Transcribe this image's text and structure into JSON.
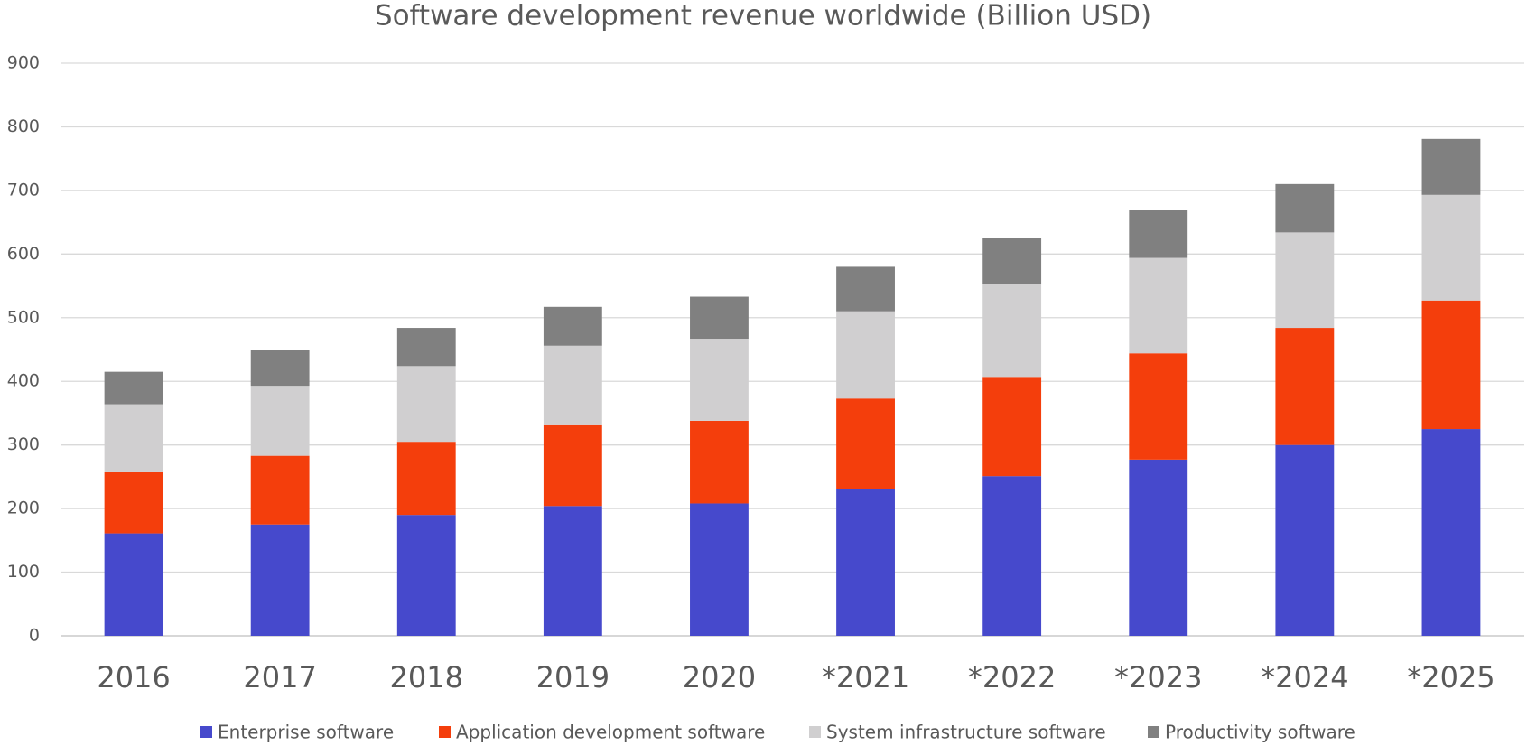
{
  "chart_data": {
    "type": "stacked_bar",
    "title": "Software development revenue worldwide (Billion USD)",
    "categories": [
      "2016",
      "2017",
      "2018",
      "2019",
      "2020",
      "*2021",
      "*2022",
      "*2023",
      "*2024",
      "*2025"
    ],
    "series": [
      {
        "name": "Enterprise software",
        "color": "#4649cc",
        "values": [
          161,
          175,
          190,
          204,
          208,
          231,
          251,
          277,
          300,
          325
        ]
      },
      {
        "name": "Application development software",
        "color": "#f43e0c",
        "values": [
          96,
          108,
          115,
          127,
          130,
          142,
          156,
          167,
          184,
          202
        ]
      },
      {
        "name": "System infrastructure software",
        "color": "#d0cfd0",
        "values": [
          107,
          110,
          119,
          125,
          129,
          137,
          146,
          150,
          150,
          166
        ]
      },
      {
        "name": "Productivity software",
        "color": "#808080",
        "values": [
          51,
          57,
          60,
          61,
          66,
          70,
          73,
          76,
          76,
          88
        ]
      }
    ],
    "ylim": [
      0,
      900
    ],
    "yticks": [
      0,
      100,
      200,
      300,
      400,
      500,
      600,
      700,
      800,
      900
    ],
    "grid": true,
    "legend": "bottom"
  }
}
